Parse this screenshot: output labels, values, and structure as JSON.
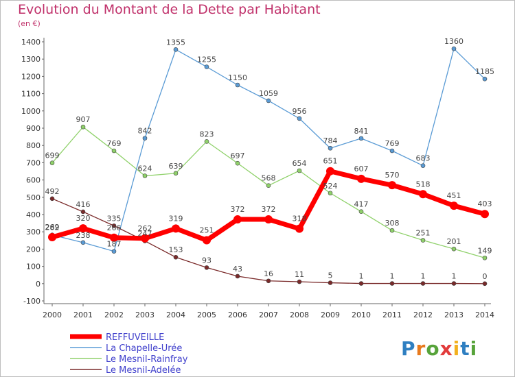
{
  "title": "Evolution du Montant de la Dette par Habitant",
  "unit": "(en €)",
  "logo": {
    "text": "Proxiti",
    "colors": [
      "#2f7fc1",
      "#e87a1e",
      "#57a33a",
      "#e23b3b",
      "#f2b01e",
      "#2f7fc1",
      "#57a33a"
    ]
  },
  "chart_data": {
    "type": "line",
    "title": "Evolution du Montant de la Dette par Habitant",
    "ylabel": "(en €)",
    "xlabel": "",
    "x": [
      "2000",
      "2001",
      "2002",
      "2003",
      "2004",
      "2005",
      "2006",
      "2007",
      "2008",
      "2009",
      "2010",
      "2011",
      "2012",
      "2013",
      "2014"
    ],
    "ylim": [
      -100,
      1400
    ],
    "yticks": [
      "-100",
      "0",
      "100",
      "200",
      "300",
      "400",
      "500",
      "600",
      "700",
      "800",
      "900",
      "1000",
      "1100",
      "1200",
      "1300",
      "1400"
    ],
    "grid": false,
    "legend_position": "bottom-left",
    "series": [
      {
        "name": "REFFUVEILLE",
        "color": "#ff0000",
        "values": [
          269,
          320,
          266,
          262,
          319,
          251,
          372,
          372,
          318,
          651,
          607,
          570,
          518,
          451,
          403
        ],
        "labels": [
          "269",
          "320",
          "266",
          "262",
          "319",
          "251",
          "372",
          "372",
          "318",
          "651",
          "607",
          "570",
          "518",
          "451",
          "403"
        ]
      },
      {
        "name": "La Chapelle-Urée",
        "color": "#5a9bd5",
        "values": [
          282,
          238,
          187,
          842,
          1355,
          1255,
          1150,
          1059,
          956,
          784,
          841,
          769,
          683,
          1360,
          1185
        ],
        "labels": [
          "282",
          "238",
          "187",
          "842",
          "1355",
          "1255",
          "1150",
          "1059",
          "956",
          "784",
          "841",
          "769",
          "683",
          "1360",
          "1185"
        ]
      },
      {
        "name": "Le Mesnil-Rainfray",
        "color": "#8fd16a",
        "values": [
          699,
          907,
          769,
          624,
          639,
          823,
          697,
          568,
          654,
          524,
          417,
          308,
          251,
          201,
          149
        ],
        "labels": [
          "699",
          "907",
          "769",
          "624",
          "639",
          "823",
          "697",
          "568",
          "654",
          "524",
          "417",
          "308",
          "251",
          "201",
          "149"
        ]
      },
      {
        "name": "Le Mesnil-Adelée",
        "color": "#7a2a2a",
        "values": [
          492,
          416,
          335,
          247,
          153,
          93,
          43,
          16,
          11,
          5,
          1,
          1,
          1,
          1,
          0
        ],
        "labels": [
          "492",
          "416",
          "335",
          "247",
          "153",
          "93",
          "43",
          "16",
          "11",
          "5",
          "1",
          "1",
          "1",
          "1",
          "0"
        ]
      }
    ]
  }
}
